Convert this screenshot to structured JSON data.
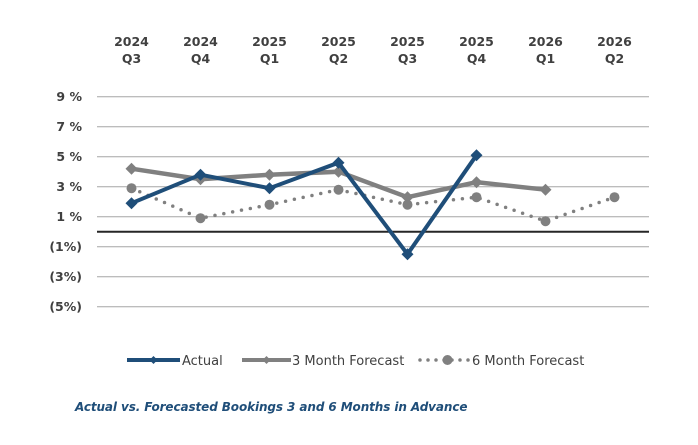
{
  "chart_data": {
    "type": "line",
    "title": "",
    "caption": "Actual vs. Forecasted Bookings 3 and 6 Months in Advance",
    "xlabel": "",
    "ylabel": "",
    "x_axis_position": "top",
    "categories": [
      {
        "year": "2024",
        "quarter": "Q3"
      },
      {
        "year": "2024",
        "quarter": "Q4"
      },
      {
        "year": "2025",
        "quarter": "Q1"
      },
      {
        "year": "2025",
        "quarter": "Q2"
      },
      {
        "year": "2025",
        "quarter": "Q3"
      },
      {
        "year": "2025",
        "quarter": "Q4"
      },
      {
        "year": "2026",
        "quarter": "Q1"
      },
      {
        "year": "2026",
        "quarter": "Q2"
      }
    ],
    "ylim": [
      -5,
      9
    ],
    "y_ticks": [
      {
        "value": 9,
        "label": "9 %"
      },
      {
        "value": 7,
        "label": "7 %"
      },
      {
        "value": 5,
        "label": "5 %"
      },
      {
        "value": 3,
        "label": "3 %"
      },
      {
        "value": 1,
        "label": "1 %"
      },
      {
        "value": -1,
        "label": "(1%)"
      },
      {
        "value": -3,
        "label": "(3%)"
      },
      {
        "value": -5,
        "label": "(5%)"
      }
    ],
    "zero_line": true,
    "grid": true,
    "legend_position": "bottom",
    "series": [
      {
        "name": "Actual",
        "color": "#1f4e79",
        "style": "solid",
        "marker": "diamond",
        "values": [
          1.9,
          3.8,
          2.9,
          4.6,
          -1.5,
          5.1,
          null,
          null
        ]
      },
      {
        "name": "3 Month Forecast",
        "color": "#808080",
        "style": "solid",
        "marker": "diamond",
        "values": [
          4.2,
          3.5,
          3.8,
          4.0,
          2.3,
          3.3,
          2.8,
          null
        ]
      },
      {
        "name": "6 Month Forecast",
        "color": "#808080",
        "style": "dotted",
        "marker": "circle",
        "values": [
          2.9,
          0.9,
          1.8,
          2.8,
          1.8,
          2.3,
          0.7,
          2.3
        ]
      }
    ]
  }
}
